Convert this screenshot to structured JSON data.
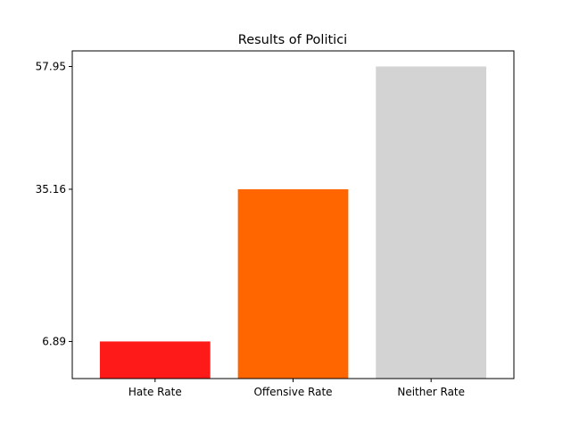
{
  "chart_data": {
    "type": "bar",
    "title": "Results of Politici",
    "xlabel": "",
    "ylabel": "",
    "categories": [
      "Hate Rate",
      "Offensive Rate",
      "Neither Rate"
    ],
    "values": [
      6.89,
      35.16,
      57.95
    ],
    "colors": [
      "#ff1a1a",
      "#ff6600",
      "#d3d3d3"
    ],
    "yticks": [
      "6.89",
      "35.16",
      "57.95"
    ],
    "ylim": [
      0,
      60.85
    ],
    "grid": false,
    "legend": "none"
  }
}
